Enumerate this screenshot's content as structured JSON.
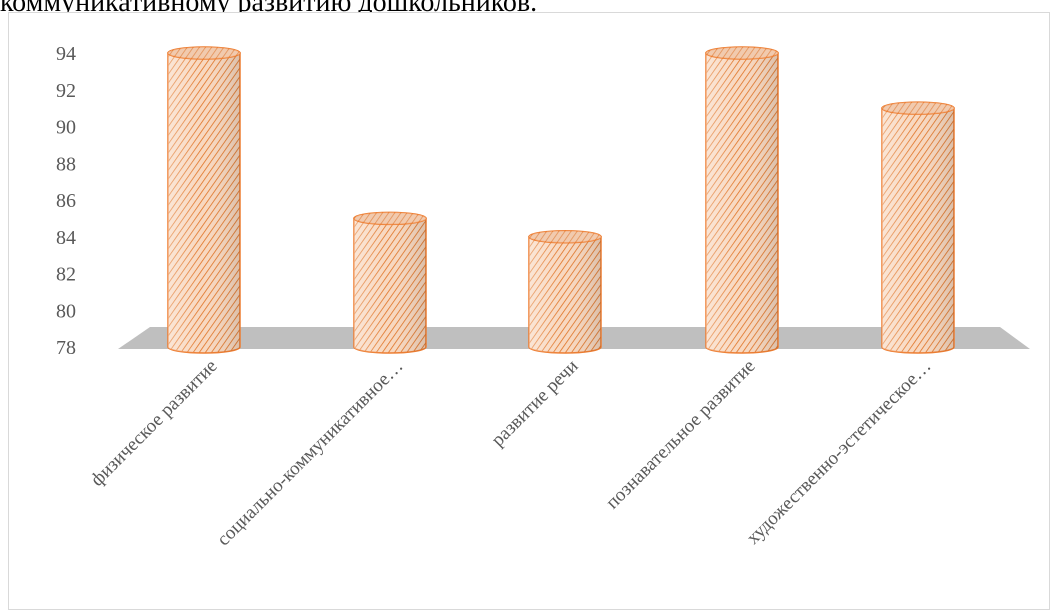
{
  "heading_fragment": "коммуникативному развитию дошкольников.",
  "chart_data": {
    "type": "bar",
    "style": "3d-cylinder",
    "categories": [
      "физическое развитие",
      "социально-коммуникативное…",
      "развитие речи",
      "познавательное развитие",
      "художественно-эстетическое…"
    ],
    "values": [
      94,
      85,
      84,
      94,
      91
    ],
    "ylim": [
      78,
      94
    ],
    "yticks": [
      78,
      80,
      82,
      84,
      86,
      88,
      90,
      92,
      94
    ],
    "title": "",
    "xlabel": "",
    "ylabel": "",
    "grid": false,
    "legend": "none",
    "colors": {
      "bar_fill": "#f8d8c0",
      "bar_stripe": "#e07020",
      "bar_edge": "#ed7d31",
      "floor": "#bfbfbf",
      "text": "#595959",
      "frame": "#d9d9d9"
    }
  }
}
